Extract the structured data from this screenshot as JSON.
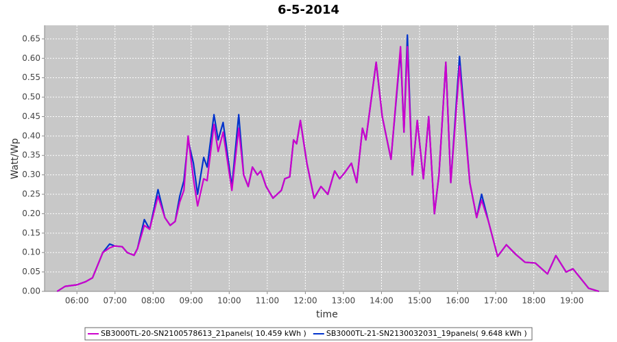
{
  "chart_data": {
    "type": "line",
    "title": "6-5-2014",
    "x_label": "time",
    "y_label": "Watt/Wp",
    "x": [
      5.48,
      5.69,
      6.0,
      6.23,
      6.41,
      6.68,
      6.86,
      6.99,
      7.19,
      7.32,
      7.5,
      7.59,
      7.77,
      7.91,
      8.13,
      8.31,
      8.45,
      8.58,
      8.7,
      8.81,
      8.92,
      9.06,
      9.17,
      9.33,
      9.42,
      9.6,
      9.71,
      9.84,
      10.07,
      10.25,
      10.38,
      10.5,
      10.61,
      10.74,
      10.83,
      10.97,
      11.15,
      11.37,
      11.46,
      11.59,
      11.69,
      11.77,
      11.87,
      12.04,
      12.23,
      12.41,
      12.59,
      12.77,
      12.9,
      13.03,
      13.21,
      13.35,
      13.5,
      13.59,
      13.86,
      14.02,
      14.25,
      14.5,
      14.59,
      14.68,
      14.81,
      14.94,
      15.1,
      15.24,
      15.39,
      15.51,
      15.69,
      15.82,
      16.05,
      16.32,
      16.5,
      16.63,
      16.81,
      17.05,
      17.28,
      17.53,
      17.77,
      18.04,
      18.36,
      18.58,
      18.85,
      19.03,
      19.26,
      19.44,
      19.71
    ],
    "series": [
      {
        "name": "SB3000TL-20-SN2100578613_21panels( 10.459 kWh )",
        "color": "#cc00cc",
        "values": [
          0,
          0.013,
          0.017,
          0.025,
          0.035,
          0.1,
          0.112,
          0.117,
          0.115,
          0.1,
          0.093,
          0.11,
          0.17,
          0.16,
          0.245,
          0.19,
          0.17,
          0.18,
          0.23,
          0.26,
          0.4,
          0.29,
          0.22,
          0.29,
          0.285,
          0.43,
          0.36,
          0.41,
          0.26,
          0.42,
          0.3,
          0.27,
          0.32,
          0.3,
          0.31,
          0.27,
          0.24,
          0.26,
          0.29,
          0.295,
          0.39,
          0.38,
          0.44,
          0.33,
          0.24,
          0.27,
          0.25,
          0.31,
          0.29,
          0.305,
          0.33,
          0.28,
          0.42,
          0.39,
          0.59,
          0.45,
          0.34,
          0.63,
          0.41,
          0.63,
          0.3,
          0.44,
          0.29,
          0.45,
          0.2,
          0.3,
          0.59,
          0.28,
          0.58,
          0.28,
          0.19,
          0.235,
          0.18,
          0.09,
          0.12,
          0.095,
          0.075,
          0.073,
          0.045,
          0.092,
          0.05,
          0.058,
          0.03,
          0.008,
          0
        ]
      },
      {
        "name": "SB3000TL-21-SN2130032031_19panels( 9.648 kWh )",
        "color": "#0033cc",
        "values": [
          0,
          0.013,
          0.017,
          0.025,
          0.035,
          0.1,
          0.122,
          0.117,
          0.115,
          0.1,
          0.093,
          0.11,
          0.185,
          0.16,
          0.262,
          0.19,
          0.17,
          0.18,
          0.245,
          0.285,
          0.39,
          0.33,
          0.25,
          0.345,
          0.32,
          0.455,
          0.39,
          0.435,
          0.27,
          0.455,
          0.3,
          0.27,
          0.32,
          0.3,
          0.31,
          0.27,
          0.24,
          0.26,
          0.29,
          0.295,
          0.39,
          0.38,
          0.44,
          0.33,
          0.24,
          0.27,
          0.25,
          0.31,
          0.29,
          0.305,
          0.33,
          0.28,
          0.42,
          0.39,
          0.59,
          0.45,
          0.34,
          0.62,
          0.41,
          0.66,
          0.3,
          0.44,
          0.29,
          0.45,
          0.2,
          0.3,
          0.59,
          0.28,
          0.605,
          0.28,
          0.19,
          0.25,
          0.18,
          0.09,
          0.12,
          0.095,
          0.075,
          0.073,
          0.045,
          0.092,
          0.05,
          0.058,
          0.03,
          0.008,
          0
        ]
      }
    ],
    "xlim": [
      5.15,
      19.97
    ],
    "xticks": [
      {
        "value": 6,
        "label": "06:00"
      },
      {
        "value": 7,
        "label": "07:00"
      },
      {
        "value": 8,
        "label": "08:00"
      },
      {
        "value": 9,
        "label": "09:00"
      },
      {
        "value": 10,
        "label": "10:00"
      },
      {
        "value": 11,
        "label": "11:00"
      },
      {
        "value": 12,
        "label": "12:00"
      },
      {
        "value": 13,
        "label": "13:00"
      },
      {
        "value": 14,
        "label": "14:00"
      },
      {
        "value": 15,
        "label": "15:00"
      },
      {
        "value": 16,
        "label": "16:00"
      },
      {
        "value": 17,
        "label": "17:00"
      },
      {
        "value": 18,
        "label": "18:00"
      },
      {
        "value": 19,
        "label": "19:00"
      }
    ],
    "ylim": [
      0,
      0.685
    ],
    "yticks": [
      {
        "value": 0,
        "label": "0.00"
      },
      0.05,
      {
        "value": 0.1,
        "label": "0.10"
      },
      0.15,
      {
        "value": 0.2,
        "label": "0.20"
      },
      0.25,
      {
        "value": 0.3,
        "label": "0.30"
      },
      0.35,
      {
        "value": 0.4,
        "label": "0.40"
      },
      0.45,
      {
        "value": 0.5,
        "label": "0.50"
      },
      0.55,
      {
        "value": 0.6,
        "label": "0.60"
      },
      0.65
    ],
    "grid": true,
    "legend": "bottom"
  }
}
